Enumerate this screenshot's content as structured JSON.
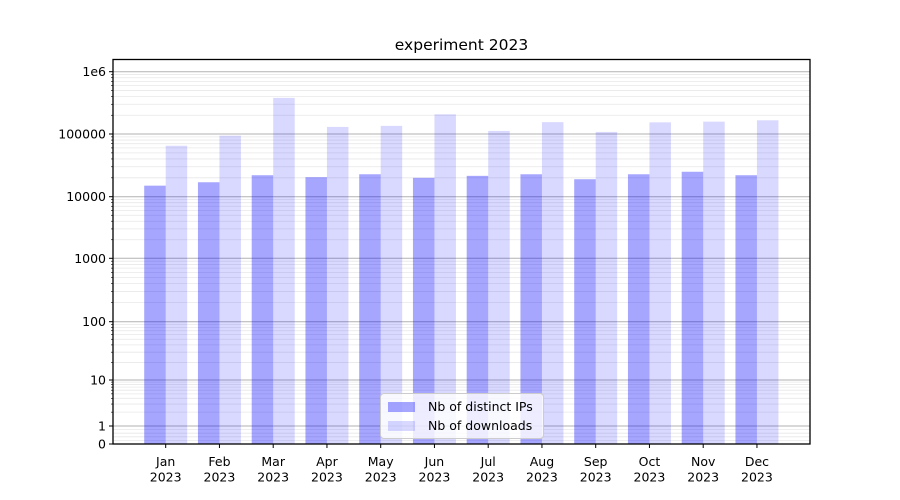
{
  "chart_data": {
    "type": "bar",
    "title": "experiment 2023",
    "xlabel": "",
    "ylabel": "",
    "yscale": "symlog",
    "ylim": [
      0,
      1600000
    ],
    "grid": "horizontal, major gray + minor light",
    "legend_position": "lower center",
    "y_ticks": [
      0,
      1,
      10,
      100,
      1000,
      10000,
      100000,
      1000000
    ],
    "y_tick_labels": [
      "0",
      "1",
      "10",
      "100",
      "1000",
      "10000",
      "100000",
      "1e6"
    ],
    "categories": [
      "Jan 2023",
      "Feb 2023",
      "Mar 2023",
      "Apr 2023",
      "May 2023",
      "Jun 2023",
      "Jul 2023",
      "Aug 2023",
      "Sep 2023",
      "Oct 2023",
      "Nov 2023",
      "Dec 2023"
    ],
    "series": [
      {
        "name": "Nb of distinct IPs",
        "color": "rgba(0,0,255,0.35)",
        "values": [
          15000,
          17000,
          22000,
          20500,
          22800,
          20000,
          21500,
          22800,
          19000,
          22800,
          25000,
          22000
        ]
      },
      {
        "name": "Nb of downloads",
        "color": "rgba(0,0,255,0.15)",
        "values": [
          65000,
          94000,
          380000,
          130000,
          135000,
          207000,
          112000,
          155000,
          108000,
          154000,
          158000,
          166000
        ]
      }
    ]
  },
  "colors": {
    "background": "#ffffff",
    "major_grid": "#b2b2b2",
    "minor_grid": "#e8e8e8",
    "axis": "#000000",
    "legend_border": "#cccccc",
    "legend_background": "rgba(255,255,255,0.8)"
  }
}
